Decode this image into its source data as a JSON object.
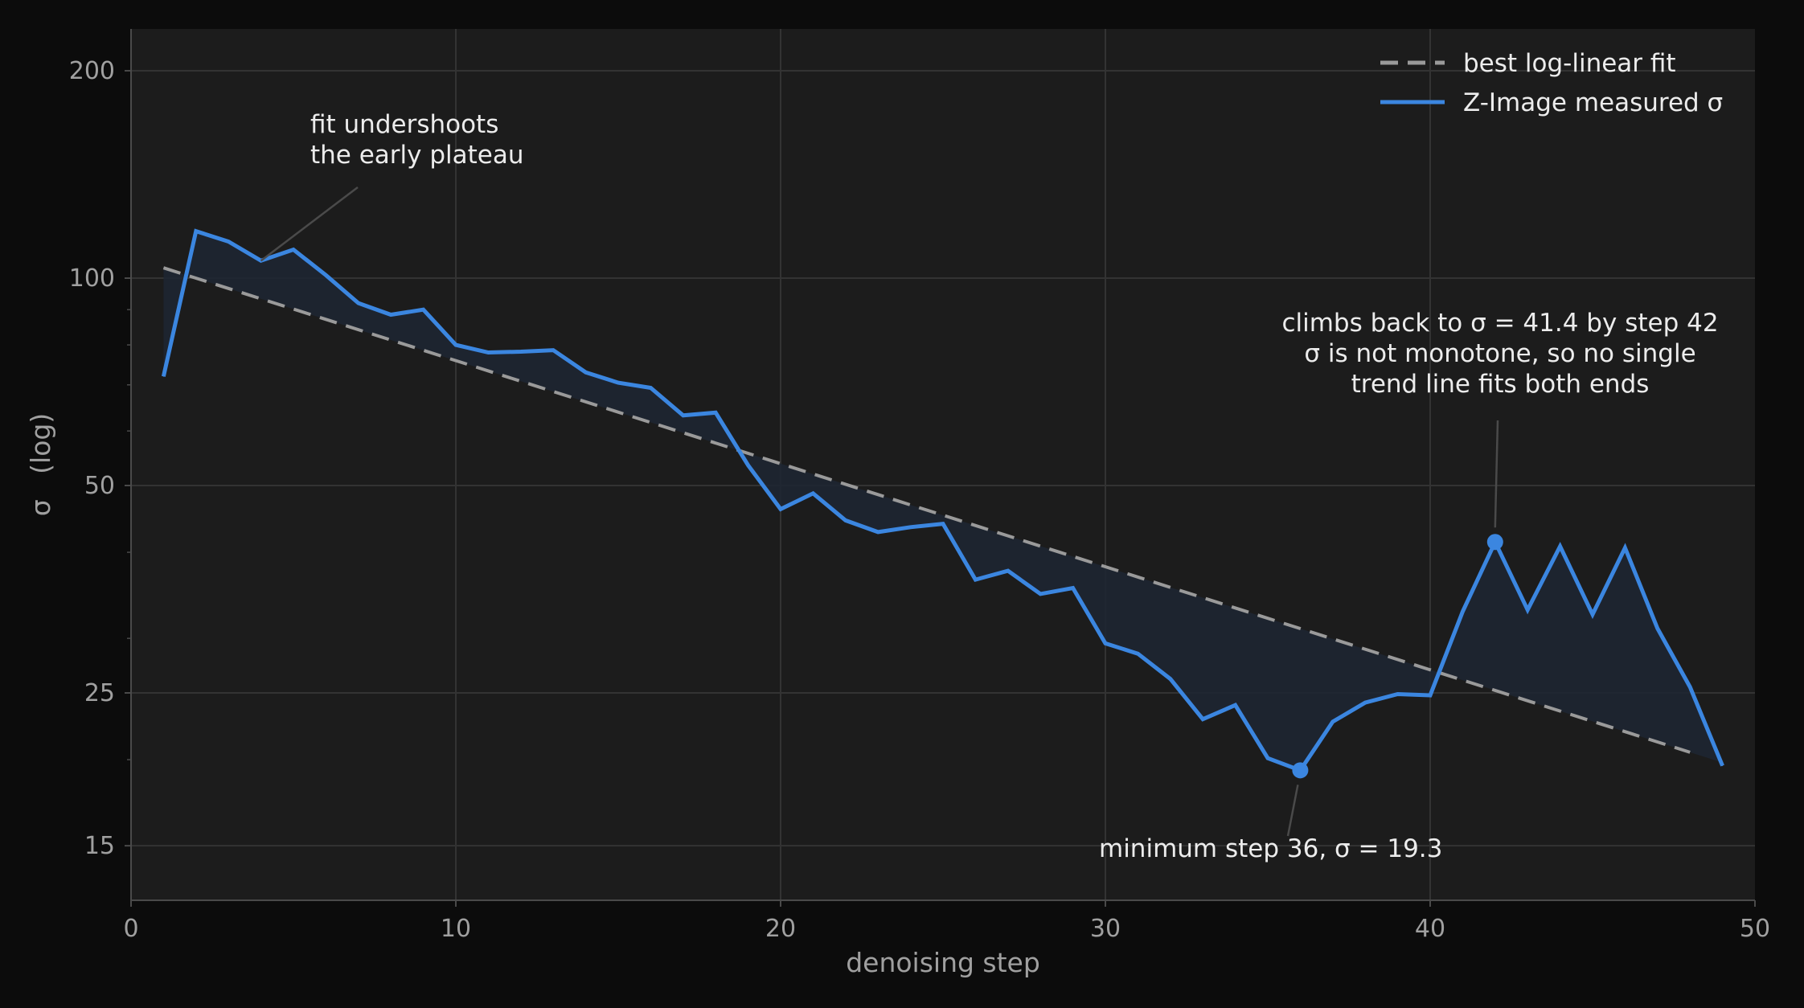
{
  "chart_data": {
    "type": "line",
    "title": "",
    "xlabel": "denoising step",
    "ylabel": "σ   (log)",
    "xlim": [
      0,
      50
    ],
    "ylim": [
      12.5,
      230
    ],
    "y_scale": "log",
    "grid": true,
    "legend_position": "top-right",
    "x_ticks": [
      0,
      10,
      20,
      30,
      40,
      50
    ],
    "y_ticks": [
      15,
      25,
      50,
      100,
      200
    ],
    "colors": {
      "measured": "#3b86e0",
      "fit": "#9a9a9a",
      "fill": "#1e2632",
      "plot_bg": "#1c1c1c",
      "page_bg": "#0c0c0c",
      "grid": "#333333"
    },
    "series": [
      {
        "name": "Z-Image measured σ",
        "role": "measured",
        "x": [
          1,
          2,
          3,
          4,
          5,
          6,
          7,
          8,
          9,
          10,
          11,
          12,
          13,
          14,
          15,
          16,
          17,
          18,
          19,
          20,
          21,
          22,
          23,
          24,
          25,
          26,
          27,
          28,
          29,
          30,
          31,
          32,
          33,
          34,
          35,
          36,
          37,
          38,
          39,
          40,
          41,
          42,
          43,
          44,
          45,
          46,
          47,
          48,
          49
        ],
        "y": [
          72,
          117,
          113,
          106,
          110,
          101,
          92,
          88.5,
          90,
          80,
          78,
          78.2,
          78.6,
          73,
          70.5,
          69.3,
          63.2,
          63.8,
          53.5,
          46.2,
          48.7,
          44.5,
          42.8,
          43.5,
          44,
          36.5,
          37.6,
          34.8,
          35.5,
          29.5,
          28.5,
          26.2,
          22.9,
          24,
          20.1,
          19.3,
          22.7,
          24.2,
          24.9,
          24.8,
          32.8,
          41.4,
          33,
          40.8,
          32.5,
          40.6,
          31,
          25.5,
          19.6
        ]
      },
      {
        "name": "best log-linear fit",
        "role": "fit",
        "x": [
          1,
          48
        ],
        "y": [
          103.5,
          20.5
        ]
      }
    ],
    "annotations": [
      {
        "lines": [
          "fit undershoots",
          "the early plateau"
        ],
        "target_x": 4,
        "target_y": 106,
        "marker": false
      },
      {
        "lines": [
          "climbs back to σ = 41.4 by step 42",
          "σ is not monotone, so no single",
          "trend line fits both ends"
        ],
        "target_x": 42,
        "target_y": 41.4,
        "marker": true
      },
      {
        "lines": [
          "minimum   step 36,  σ = 19.3"
        ],
        "target_x": 36,
        "target_y": 19.3,
        "marker": true
      }
    ]
  }
}
